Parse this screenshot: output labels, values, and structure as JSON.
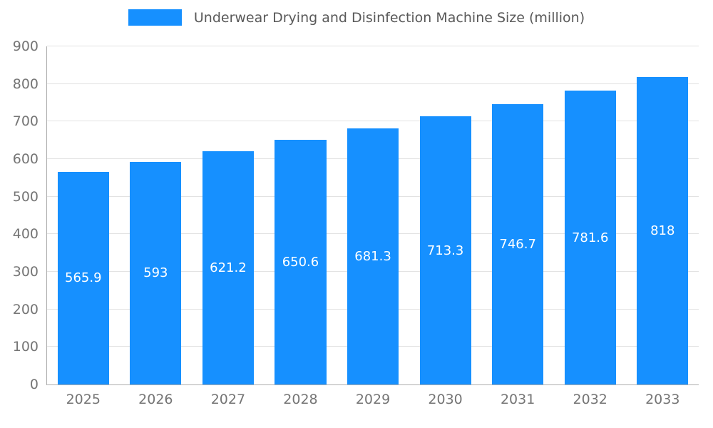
{
  "chart_data": {
    "type": "bar",
    "title": "Underwear Drying and Disinfection Machine Size (million)",
    "categories": [
      "2025",
      "2026",
      "2027",
      "2028",
      "2029",
      "2030",
      "2031",
      "2032",
      "2033"
    ],
    "values": [
      565.9,
      593,
      621.2,
      650.6,
      681.3,
      713.3,
      746.7,
      781.6,
      818
    ],
    "value_labels": [
      "565.9",
      "593",
      "621.2",
      "650.6",
      "681.3",
      "713.3",
      "746.7",
      "781.6",
      "818"
    ],
    "xlabel": "",
    "ylabel": "",
    "ylim": [
      0,
      900
    ],
    "yticks": [
      0,
      100,
      200,
      300,
      400,
      500,
      600,
      700,
      800,
      900
    ],
    "grid": "horizontal",
    "legend_position": "top-center",
    "colors": {
      "bar": "#1690ff",
      "bar_value_text": "#ffffff",
      "axis_text": "#757575",
      "title_text": "#595959",
      "gridline": "#e2e2e2",
      "axis_line": "#aeaeae",
      "background": "#ffffff"
    }
  }
}
